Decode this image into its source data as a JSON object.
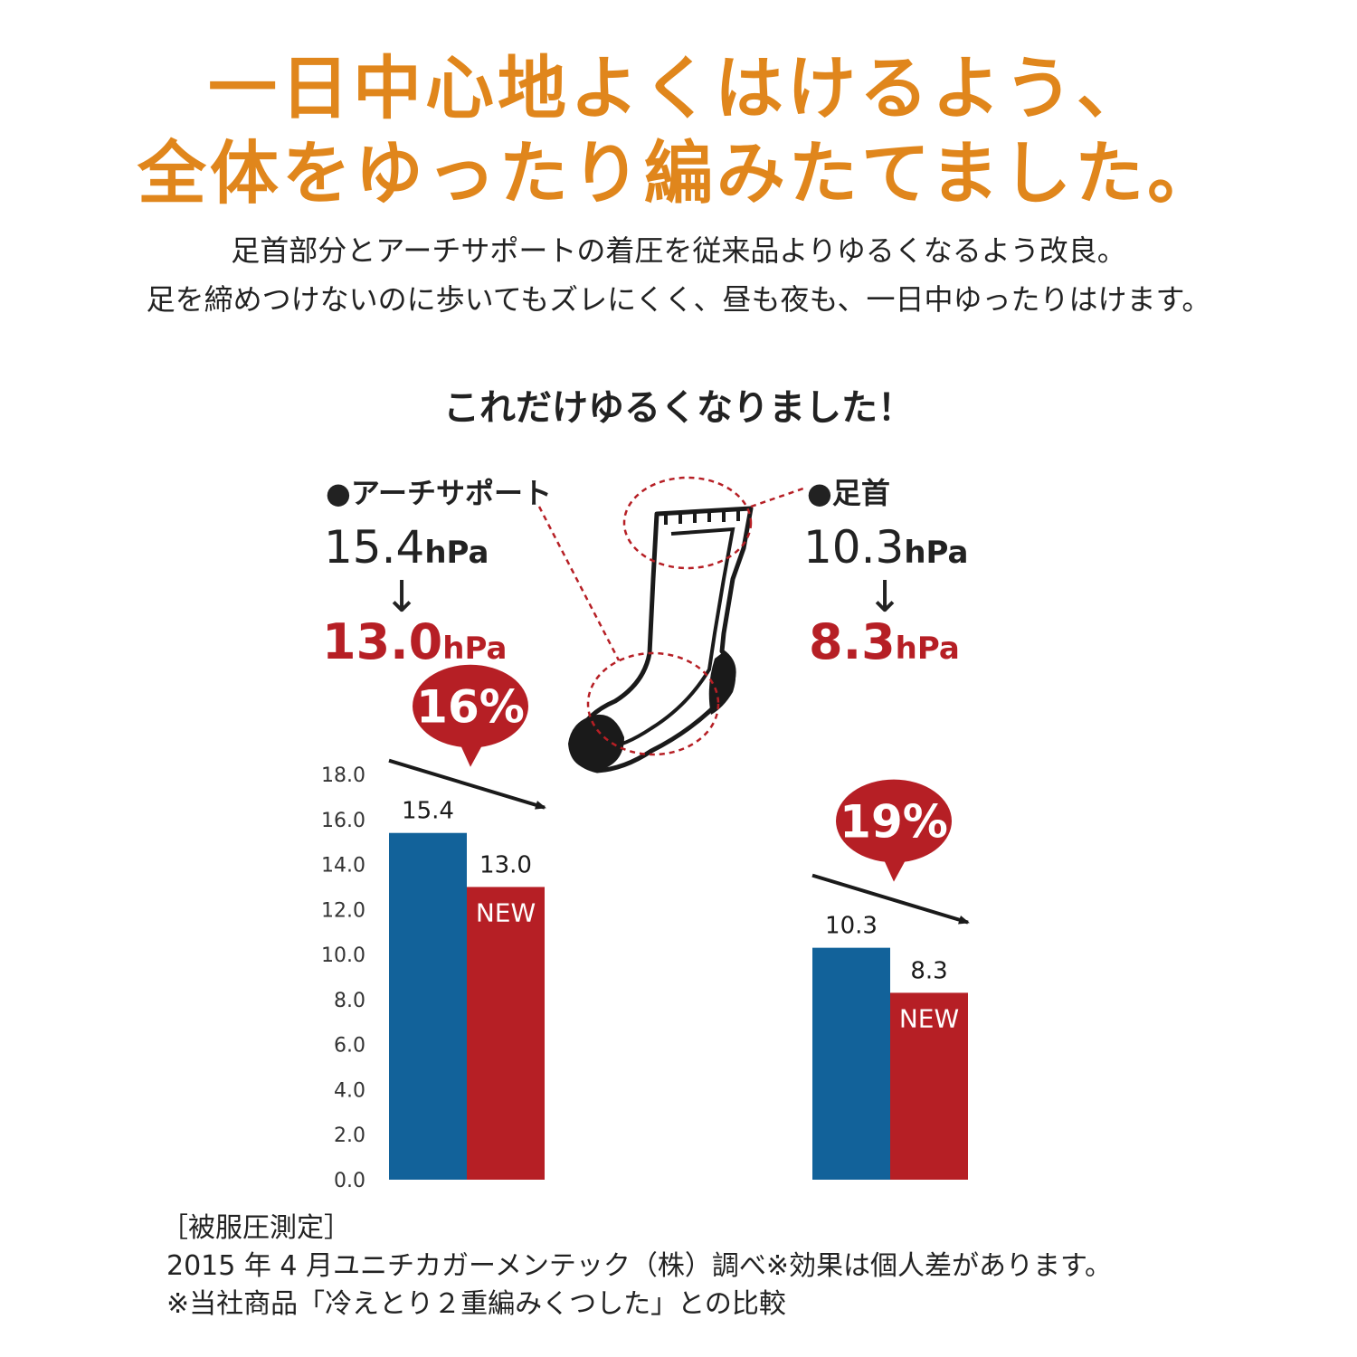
{
  "colors": {
    "headline": "#e0861c",
    "accent_red": "#b61f25",
    "bar_blue": "#12629a",
    "bar_red": "#b61f25",
    "dashed_circle": "#b61f25"
  },
  "headline": {
    "line1": "一日中心地よくはけるよう、",
    "line2": "全体をゆったり編みたてました。"
  },
  "lead": {
    "line1": "足首部分とアーチサポートの着圧を従来品よりゆるくなるよう改良。",
    "line2": "足を締めつけないのに歩いてもズレにくく、昼も夜も、一日中ゆったりはけます。"
  },
  "subheading": "これだけゆるくなりました！",
  "callouts": {
    "arch": {
      "title": "●アーチサポート",
      "before": "15.4",
      "after": "13.0",
      "unit": "hPa",
      "arrow": "↓"
    },
    "ankle": {
      "title": "●足首",
      "before": "10.3",
      "after": "8.3",
      "unit": "hPa",
      "arrow": "↓"
    }
  },
  "icons": {
    "sock": "sock-illustration-icon",
    "trend_arrow": "trend-arrow-icon",
    "speech_bubble": "speech-bubble-icon"
  },
  "chart_data": {
    "type": "bar",
    "categories": [
      "アーチサポート",
      "足首"
    ],
    "series": [
      {
        "values": [
          15.4,
          10.3
        ]
      },
      {
        "name": "NEW",
        "values": [
          13.0,
          8.3
        ]
      }
    ],
    "ylim": [
      0,
      18
    ],
    "yticks": [
      "0.0",
      "2.0",
      "4.0",
      "6.0",
      "8.0",
      "10.0",
      "12.0",
      "14.0",
      "16.0",
      "18.0"
    ],
    "reduction_labels": [
      "16%",
      "19%"
    ],
    "value_labels": [
      "15.4",
      "13.0",
      "10.3",
      "8.3"
    ],
    "new_label": "NEW",
    "grid": false
  },
  "footnotes": {
    "line1": "［被服圧測定］",
    "line2": "2015 年 4 月ユニチカガーメンテック（株）調べ※効果は個人差があります。",
    "line3": "※当社商品「冷えとり２重編みくつした」との比較"
  }
}
